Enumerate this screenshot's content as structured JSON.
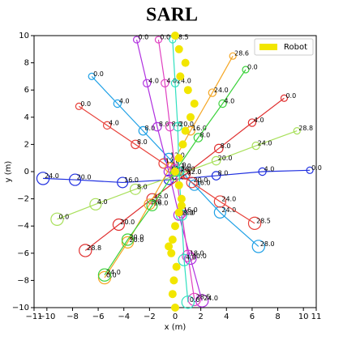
{
  "chart_data": {
    "type": "trajectory",
    "title": "SARL",
    "x_label": "x (m)",
    "y_label": "y (m)",
    "xlim": [
      -11,
      11
    ],
    "ylim": [
      -10,
      10
    ],
    "xticks": [
      {
        "value": -11,
        "label": "−11"
      },
      {
        "value": -10,
        "label": "−10"
      },
      {
        "value": -8,
        "label": "−8"
      },
      {
        "value": -6,
        "label": "−6"
      },
      {
        "value": -4,
        "label": "−4"
      },
      {
        "value": -2,
        "label": "−2"
      },
      0,
      2,
      4,
      6,
      8,
      10,
      11
    ],
    "yticks": [
      {
        "value": -10,
        "label": "−10"
      },
      {
        "value": -8,
        "label": "−8"
      },
      {
        "value": -6,
        "label": "−6"
      },
      {
        "value": -4,
        "label": "−4"
      },
      {
        "value": -2,
        "label": "−2"
      },
      0,
      2,
      4,
      6,
      8,
      10
    ],
    "legend": "upper right",
    "series": [
      {
        "color": "#1f2fe0",
        "x": [
          10.5,
          6.8,
          3.2,
          -0.5,
          -4.1,
          -7.8,
          -10.3
        ],
        "y": [
          0.1,
          0,
          -0.3,
          -0.6,
          -0.8,
          -0.6,
          -0.5
        ],
        "labels": [
          "0.0",
          "4.0",
          "8.0",
          "12.0",
          "16.0",
          "20.0",
          "24.0"
        ]
      },
      {
        "color": "#1ea0e6",
        "x": [
          -6.5,
          -4.5,
          -2.5,
          -0.5,
          1.5,
          3.5,
          6.5
        ],
        "y": [
          7,
          5,
          3,
          1,
          -1,
          -3,
          -5.5
        ],
        "labels": [
          "0.0",
          "4.0",
          "8.0",
          "12.0",
          "16.0",
          "24.0",
          "28.0"
        ]
      },
      {
        "color": "#e8413a",
        "x": [
          -7.5,
          -5.3,
          -3.1,
          -0.9,
          1.3,
          3.5,
          6.2
        ],
        "y": [
          4.8,
          3.4,
          2,
          0.6,
          -0.8,
          -2.2,
          -3.8
        ],
        "labels": [
          "0.0",
          "4.0",
          "8.0",
          "12.0",
          "20.0",
          "24.0",
          "28.5"
        ]
      },
      {
        "color": "#e03030",
        "x": [
          8.5,
          6,
          3.4,
          0.8,
          -1.8,
          -4.4,
          -7
        ],
        "y": [
          5.4,
          3.6,
          1.7,
          -0.2,
          -2,
          -3.9,
          -5.8
        ],
        "labels": [
          "0.0",
          "4.0",
          "8.0",
          "12.0",
          "16.0",
          "20.0",
          "28.8"
        ]
      },
      {
        "color": "#a8e05a",
        "x": [
          9.5,
          6.3,
          3.2,
          0,
          -3.1,
          -6.2,
          -9.2
        ],
        "y": [
          3,
          1.9,
          0.8,
          -0.3,
          -1.3,
          -2.4,
          -3.5
        ],
        "labels": [
          "28.8",
          "24.0",
          "20.0",
          "12.0",
          "8.0",
          "4.0",
          "0.0"
        ]
      },
      {
        "color": "#f5a623",
        "x": [
          4.5,
          2.9,
          1.2,
          -0.4,
          -2,
          -3.7,
          -5.5
        ],
        "y": [
          8.5,
          5.8,
          3,
          0.3,
          -2.4,
          -5.2,
          -7.8
        ],
        "labels": [
          "28.6",
          "24.0",
          "16.0",
          "12.0",
          "8.0",
          "20.0",
          "0.0"
        ]
      },
      {
        "color": "#3cd23c",
        "x": [
          5.5,
          3.7,
          1.8,
          0,
          -1.8,
          -3.7,
          -5.5
        ],
        "y": [
          7.5,
          5,
          2.5,
          0,
          -2.5,
          -5,
          -7.6
        ],
        "labels": [
          "0.0",
          "4.0",
          "8.0",
          "12.0",
          "16.0",
          "20.0",
          "24.0"
        ]
      },
      {
        "color": "#b030e0",
        "x": [
          -3,
          -2.2,
          -1.4,
          -0.5,
          0.3,
          1.2,
          2.1
        ],
        "y": [
          9.7,
          6.5,
          3.3,
          0,
          -3.2,
          -6.4,
          -9.5
        ],
        "labels": [
          "0.0",
          "4.0",
          "8.0",
          "12.0",
          "16.0",
          "20.0",
          "24.0"
        ]
      },
      {
        "color": "#e040c0",
        "x": [
          -1.3,
          -0.8,
          -0.4,
          0,
          0.5,
          1,
          1.5
        ],
        "y": [
          9.7,
          6.5,
          3.3,
          0.2,
          -3,
          -6.2,
          -9.4
        ],
        "labels": [
          "0.0",
          "4.0",
          "8.0",
          "12.0",
          "16.0",
          "18.0",
          "28.5"
        ]
      },
      {
        "color": "#30e0c0",
        "x": [
          -0.2,
          0,
          0.2,
          0.3,
          0.5,
          0.7,
          1
        ],
        "y": [
          9.7,
          6.5,
          3.3,
          0,
          -3.2,
          -6.5,
          -9.6
        ],
        "labels": [
          "28.5",
          "24.0",
          "20.0",
          "16.0",
          "8.0",
          "4.0",
          "0.0"
        ]
      },
      {
        "name": "Robot",
        "color": "#f2e600",
        "robot": true,
        "x": [
          0,
          -0.2,
          -0.1,
          0.1,
          -0.3,
          -0.5,
          -0.2,
          0,
          0.3,
          0.5,
          0.5,
          0.3,
          0,
          0.3,
          0.6,
          0.8,
          1.2,
          1.5,
          1,
          0.4,
          0.8,
          0.3,
          0
        ],
        "y": [
          -10,
          -9,
          -8,
          -7,
          -6,
          -5.5,
          -5,
          -4,
          -3,
          -2.5,
          -2,
          -1,
          0,
          1,
          2,
          3,
          4,
          5,
          6,
          7,
          8,
          9,
          10
        ]
      }
    ]
  }
}
